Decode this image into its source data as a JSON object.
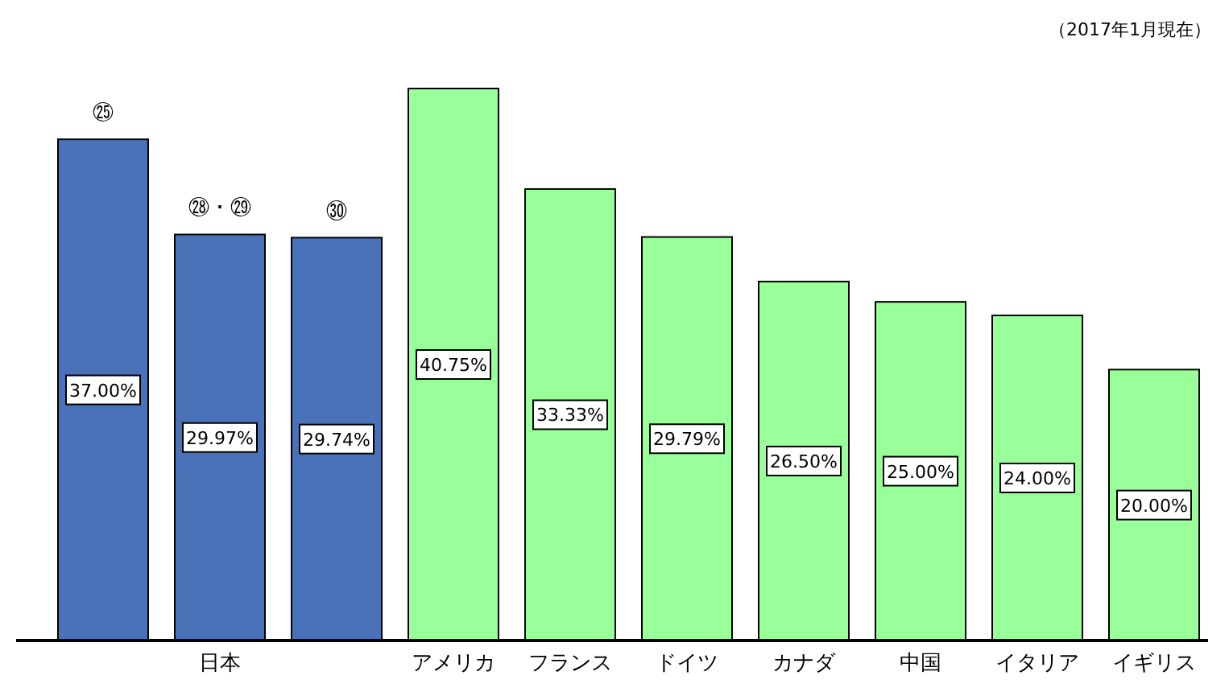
{
  "chart_data": {
    "type": "bar",
    "data_labels": true,
    "categories": [
      null,
      "日本",
      null,
      "アメリカ",
      "フランス",
      "ドイツ",
      "カナダ",
      "中国",
      "イタリア",
      "イギリス"
    ],
    "values": [
      37.0,
      29.97,
      29.74,
      40.75,
      33.33,
      29.79,
      26.5,
      25.0,
      24.0,
      20.0
    ],
    "value_labels": [
      "37.00%",
      "29.97%",
      "29.74%",
      "40.75%",
      "33.33%",
      "29.79%",
      "26.50%",
      "25.00%",
      "24.00%",
      "20.00%"
    ],
    "colors": [
      "#4a72b8",
      "#4a72b8",
      "#4a72b8",
      "#99ff99",
      "#99ff99",
      "#99ff99",
      "#99ff99",
      "#99ff99",
      "#99ff99",
      "#99ff99"
    ],
    "annotations": [
      "㉕",
      "㉘・㉙",
      "㉚",
      "（2017年1月現在）"
    ]
  }
}
